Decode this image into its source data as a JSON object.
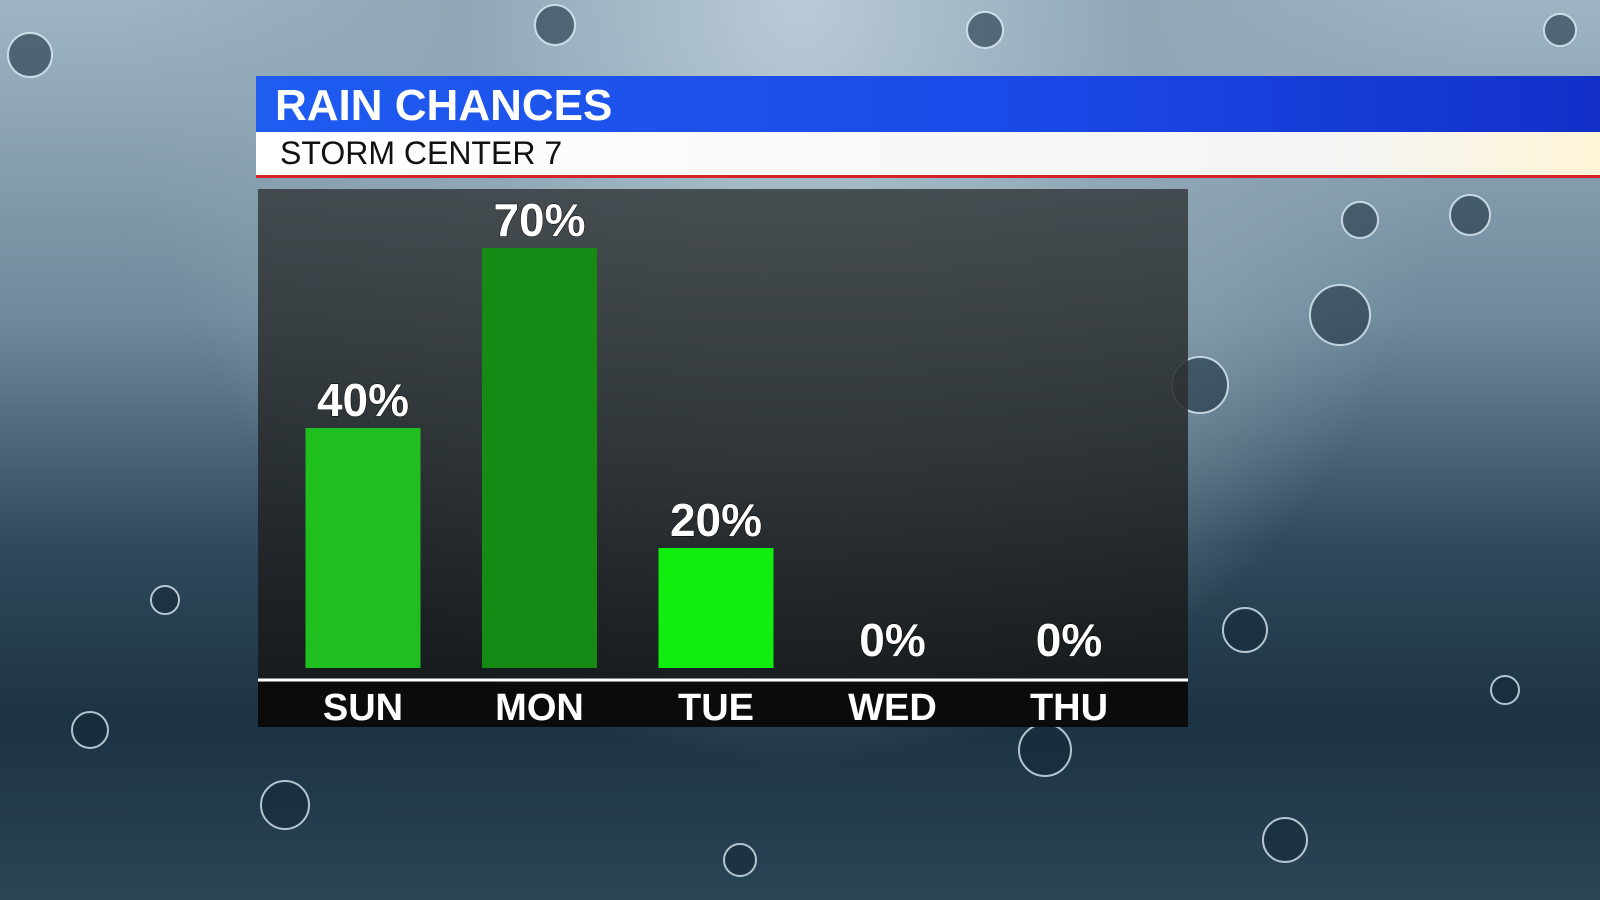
{
  "chart_data": {
    "type": "bar",
    "title": "RAIN CHANCES",
    "subtitle": "STORM CENTER 7",
    "categories": [
      "SUN",
      "MON",
      "TUE",
      "WED",
      "THU"
    ],
    "values": [
      40,
      70,
      20,
      0,
      0
    ],
    "value_labels": [
      "40%",
      "70%",
      "20%",
      "0%",
      "0%"
    ],
    "colors": [
      "#1fbf1f",
      "#158a15",
      "#10ee10",
      "#10ee10",
      "#10ee10"
    ]
  }
}
